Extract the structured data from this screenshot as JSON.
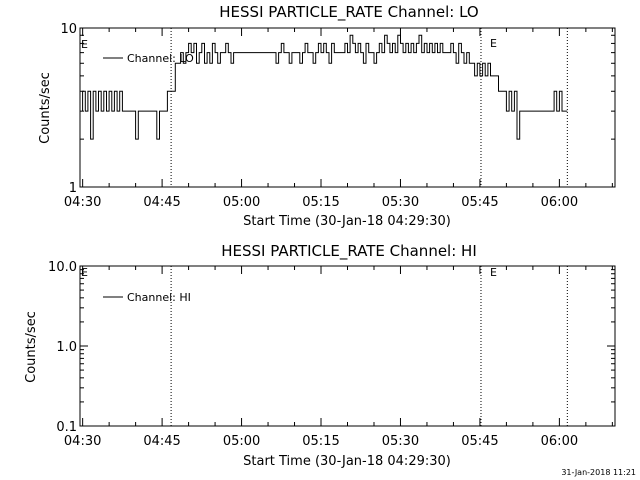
{
  "chart_data": [
    {
      "type": "line",
      "title": "HESSI PARTICLE_RATE Channel: LO",
      "xlabel": "Start Time (30-Jan-18 04:29:30)",
      "ylabel": "Counts/sec",
      "yscale": "log",
      "xlim_minutes": [
        0,
        101
      ],
      "ylim": [
        1,
        10
      ],
      "xticks": [
        {
          "label": "04:30",
          "minute": 0.5
        },
        {
          "label": "04:45",
          "minute": 15.5
        },
        {
          "label": "05:00",
          "minute": 30.5
        },
        {
          "label": "05:15",
          "minute": 45.5
        },
        {
          "label": "05:30",
          "minute": 60.5
        },
        {
          "label": "05:45",
          "minute": 75.5
        },
        {
          "label": "06:00",
          "minute": 90.5
        }
      ],
      "yticks": [
        {
          "label": "10",
          "value": 10
        },
        {
          "label": "1",
          "value": 1
        }
      ],
      "legend": {
        "label": "Channel: LO",
        "position": "top-left"
      },
      "annotations": [
        {
          "text": "E",
          "minute": 0.3
        },
        {
          "text": "E",
          "minute": 75.5
        }
      ],
      "vlines_minutes": [
        17.2,
        75.7,
        92.0
      ],
      "series": [
        {
          "label": "Channel: LO",
          "x": [
            0.5,
            1.0,
            1.5,
            2.0,
            2.5,
            3.0,
            3.5,
            4.0,
            4.5,
            5.0,
            5.5,
            6.0,
            6.5,
            7.0,
            7.5,
            8.0,
            8.5,
            9.0,
            9.5,
            10.0,
            10.5,
            11.0,
            11.5,
            12.0,
            12.5,
            13.0,
            13.5,
            14.0,
            14.5,
            15.0,
            15.5,
            16.0,
            16.5,
            17.0,
            17.5,
            18.0,
            18.5,
            19.0,
            19.5,
            20.0,
            20.5,
            21.0,
            21.5,
            22.0,
            22.5,
            23.0,
            23.5,
            24.0,
            24.5,
            25.0,
            25.5,
            26.0,
            26.5,
            27.0,
            27.5,
            28.0,
            28.5,
            29.0,
            29.5,
            30.0,
            31.0,
            32.0,
            33.0,
            34.0,
            35.0,
            36.0,
            37.0,
            37.5,
            38.0,
            38.5,
            39.0,
            39.5,
            40.0,
            40.5,
            41.0,
            41.5,
            42.0,
            42.5,
            43.0,
            43.5,
            44.0,
            44.5,
            45.0,
            45.5,
            46.0,
            46.5,
            47.0,
            47.5,
            48.0,
            48.5,
            49.0,
            49.5,
            50.0,
            50.5,
            51.0,
            51.5,
            52.0,
            52.5,
            53.0,
            53.5,
            54.0,
            54.5,
            55.0,
            55.5,
            56.0,
            56.5,
            57.0,
            57.5,
            58.0,
            58.5,
            59.0,
            59.5,
            60.0,
            60.5,
            61.0,
            61.5,
            62.0,
            62.5,
            63.0,
            63.5,
            64.0,
            64.5,
            65.0,
            65.5,
            66.0,
            66.5,
            67.0,
            67.5,
            68.0,
            68.5,
            69.0,
            69.5,
            70.0,
            70.5,
            71.0,
            71.5,
            72.0,
            72.5,
            73.0,
            73.5,
            74.0,
            74.5,
            75.0,
            75.5,
            76.0,
            76.5,
            77.0,
            77.5,
            78.0,
            78.5,
            79.0,
            79.5,
            80.0,
            80.5,
            81.0,
            81.5,
            82.0,
            82.5,
            83.0,
            83.5,
            84.0,
            84.5,
            85.0,
            85.5,
            86.0,
            86.5,
            87.0,
            87.5,
            88.0,
            88.5,
            89.0,
            89.5,
            90.0,
            90.5,
            91.0,
            91.5,
            92.0
          ],
          "y": [
            3,
            4,
            3,
            4,
            2,
            4,
            3,
            4,
            3,
            4,
            3,
            4,
            3,
            4,
            3,
            4,
            3,
            3,
            3,
            3,
            3,
            2,
            3,
            3,
            3,
            3,
            3,
            3,
            3,
            2,
            3,
            3,
            3,
            4,
            4,
            4,
            6,
            6,
            7,
            6,
            7,
            8,
            7,
            8,
            6,
            7,
            8,
            6,
            7,
            6,
            8,
            7,
            6,
            7,
            7,
            8,
            7,
            6,
            7,
            7,
            7,
            7,
            7,
            7,
            7,
            7,
            7,
            6,
            7,
            8,
            7,
            7,
            6,
            7,
            7,
            7,
            6,
            7,
            8,
            7,
            7,
            6,
            7,
            8,
            7,
            8,
            7,
            6,
            8,
            7,
            7,
            7,
            7,
            8,
            7,
            9,
            8,
            7,
            8,
            7,
            6,
            8,
            7,
            7,
            6,
            7,
            8,
            7,
            9,
            8,
            7,
            8,
            7,
            9,
            8,
            7,
            8,
            7,
            8,
            7,
            8,
            9,
            7,
            8,
            7,
            8,
            7,
            8,
            7,
            8,
            7,
            7,
            7,
            8,
            7,
            6,
            8,
            7,
            6,
            7,
            6,
            6,
            5,
            6,
            5,
            6,
            5,
            6,
            5,
            5,
            5,
            4,
            4,
            4,
            3,
            4,
            3,
            4,
            2,
            3,
            3,
            3,
            3,
            3,
            3,
            3,
            3,
            3,
            3,
            3,
            3,
            3,
            4,
            3,
            4,
            3,
            3
          ]
        }
      ]
    },
    {
      "type": "line",
      "title": "HESSI PARTICLE_RATE Channel: HI",
      "xlabel": "Start Time (30-Jan-18 04:29:30)",
      "ylabel": "Counts/sec",
      "yscale": "log",
      "xlim_minutes": [
        0,
        101
      ],
      "ylim": [
        0.1,
        10
      ],
      "xticks": [
        {
          "label": "04:30",
          "minute": 0.5
        },
        {
          "label": "04:45",
          "minute": 15.5
        },
        {
          "label": "05:00",
          "minute": 30.5
        },
        {
          "label": "05:15",
          "minute": 45.5
        },
        {
          "label": "05:30",
          "minute": 60.5
        },
        {
          "label": "05:45",
          "minute": 75.5
        },
        {
          "label": "06:00",
          "minute": 90.5
        }
      ],
      "yticks": [
        {
          "label": "10.0",
          "value": 10
        },
        {
          "label": "1.0",
          "value": 1
        },
        {
          "label": "0.1",
          "value": 0.1
        }
      ],
      "legend": {
        "label": "Channel: HI",
        "position": "top-left"
      },
      "annotations": [
        {
          "text": "E",
          "minute": 0.3
        },
        {
          "text": "E",
          "minute": 75.5
        }
      ],
      "vlines_minutes": [
        17.2,
        75.7,
        92.0
      ],
      "series": [
        {
          "label": "Channel: HI",
          "x": [],
          "y": []
        }
      ]
    }
  ],
  "footer": {
    "timestamp": "31-Jan-2018 11:21"
  }
}
